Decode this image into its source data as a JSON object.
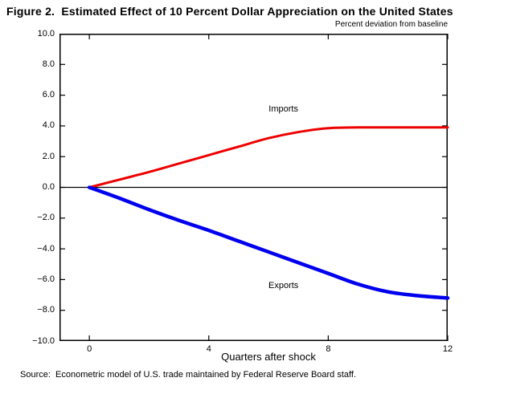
{
  "figure_title": "Figure 2.  Estimated Effect of 10 Percent Dollar Appreciation on the United States",
  "unit_label": "Percent deviation from baseline",
  "x_axis_title": "Quarters after shock",
  "source_note": "Source:  Econometric model of U.S. trade maintained by Federal Reserve Board staff.",
  "colors": {
    "imports_line": "#ee0000",
    "exports_line": "#0000ee",
    "axis": "#000000",
    "background": "#ffffff"
  },
  "chart_data": {
    "type": "line",
    "title": "Figure 2.  Estimated Effect of 10 Percent Dollar Appreciation on the United States",
    "xlabel": "Quarters after shock",
    "ylabel": "Percent deviation from baseline",
    "xlim": [
      -1,
      12
    ],
    "ylim": [
      -10,
      10
    ],
    "grid": false,
    "legend": "inline-labels",
    "zero_line": true,
    "x": [
      0,
      1,
      2,
      3,
      4,
      5,
      6,
      7,
      8,
      9,
      10,
      11,
      12
    ],
    "series": [
      {
        "name": "Imports",
        "color": "#ee0000",
        "stroke_width": 3,
        "values": [
          0,
          0.5,
          1.0,
          1.55,
          2.1,
          2.65,
          3.2,
          3.6,
          3.85,
          3.9,
          3.9,
          3.9,
          3.9
        ],
        "label_at": {
          "x": 6.5,
          "y": 5.1
        }
      },
      {
        "name": "Exports",
        "color": "#0000ee",
        "stroke_width": 4.5,
        "values": [
          0,
          -0.7,
          -1.45,
          -2.15,
          -2.8,
          -3.5,
          -4.2,
          -4.9,
          -5.6,
          -6.3,
          -6.8,
          -7.05,
          -7.2
        ],
        "label_at": {
          "x": 6.5,
          "y": -6.4
        }
      }
    ],
    "x_ticks": [
      {
        "label": "0",
        "value": 0
      },
      {
        "label": "4",
        "value": 4
      },
      {
        "label": "8",
        "value": 8
      },
      {
        "label": "12",
        "value": 12
      }
    ],
    "y_ticks": [
      {
        "label": "10.0",
        "value": 10
      },
      {
        "label": "8.0",
        "value": 8
      },
      {
        "label": "6.0",
        "value": 6
      },
      {
        "label": "4.0",
        "value": 4
      },
      {
        "label": "2.0",
        "value": 2
      },
      {
        "label": "0.0",
        "value": 0
      },
      {
        "label": "−2.0",
        "value": -2
      },
      {
        "label": "−4.0",
        "value": -4
      },
      {
        "label": "−6.0",
        "value": -6
      },
      {
        "label": "−8.0",
        "value": -8
      },
      {
        "label": "−10.0",
        "value": -10
      }
    ]
  }
}
